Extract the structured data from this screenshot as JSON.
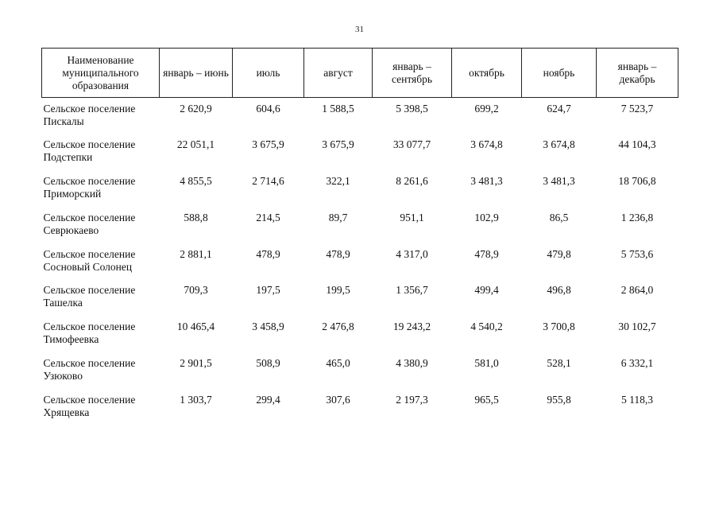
{
  "page_number": "31",
  "table": {
    "headers": [
      "Наименование муниципального образования",
      "январь – июнь",
      "июль",
      "август",
      "январь – сентябрь",
      "октябрь",
      "ноябрь",
      "январь – декабрь"
    ],
    "rows": [
      {
        "name_line1": "Сельское поселение",
        "name_line2": "Пискалы",
        "values": [
          "2 620,9",
          "604,6",
          "1 588,5",
          "5 398,5",
          "699,2",
          "624,7",
          "7 523,7"
        ]
      },
      {
        "name_line1": "Сельское поселение",
        "name_line2": "Подстепки",
        "values": [
          "22 051,1",
          "3 675,9",
          "3 675,9",
          "33 077,7",
          "3 674,8",
          "3 674,8",
          "44 104,3"
        ]
      },
      {
        "name_line1": "Сельское поселение",
        "name_line2": "Приморский",
        "values": [
          "4 855,5",
          "2 714,6",
          "322,1",
          "8 261,6",
          "3 481,3",
          "3 481,3",
          "18 706,8"
        ]
      },
      {
        "name_line1": "Сельское поселение",
        "name_line2": "Севрюкаево",
        "values": [
          "588,8",
          "214,5",
          "89,7",
          "951,1",
          "102,9",
          "86,5",
          "1 236,8"
        ]
      },
      {
        "name_line1": "Сельское поселение",
        "name_line2": "Сосновый Солонец",
        "values": [
          "2 881,1",
          "478,9",
          "478,9",
          "4 317,0",
          "478,9",
          "479,8",
          "5 753,6"
        ]
      },
      {
        "name_line1": "Сельское поселение",
        "name_line2": "Ташелка",
        "values": [
          "709,3",
          "197,5",
          "199,5",
          "1 356,7",
          "499,4",
          "496,8",
          "2 864,0"
        ]
      },
      {
        "name_line1": "Сельское поселение",
        "name_line2": "Тимофеевка",
        "values": [
          "10 465,4",
          "3 458,9",
          "2 476,8",
          "19 243,2",
          "4 540,2",
          "3 700,8",
          "30 102,7"
        ]
      },
      {
        "name_line1": "Сельское поселение",
        "name_line2": "Узюково",
        "values": [
          "2 901,5",
          "508,9",
          "465,0",
          "4 380,9",
          "581,0",
          "528,1",
          "6 332,1"
        ]
      },
      {
        "name_line1": "Сельское поселение",
        "name_line2": "Хрящевка",
        "values": [
          "1 303,7",
          "299,4",
          "307,6",
          "2 197,3",
          "965,5",
          "955,8",
          "5 118,3"
        ]
      }
    ]
  }
}
